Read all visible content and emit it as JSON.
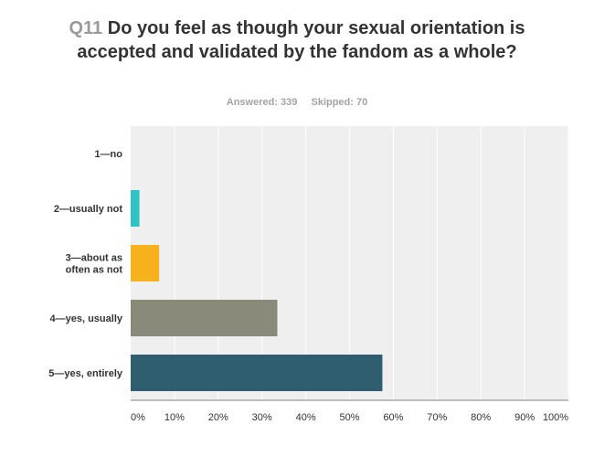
{
  "header": {
    "question_number": "Q11",
    "question_text": "Do you feel as though your sexual orientation is accepted and validated by the fandom as a whole?",
    "answered_label": "Answered: 339",
    "skipped_label": "Skipped: 70"
  },
  "chart_data": {
    "type": "bar",
    "orientation": "horizontal",
    "categories": [
      [
        "1—no"
      ],
      [
        "2—usually not"
      ],
      [
        "3—about as",
        "often as not"
      ],
      [
        "4—yes, usually"
      ],
      [
        "5—yes, entirely"
      ]
    ],
    "values": [
      0,
      2,
      6.5,
      33.5,
      57.5
    ],
    "colors": [
      "#2aa8b8",
      "#2ec4c6",
      "#f7b11c",
      "#8a8a7a",
      "#2f5f6e"
    ],
    "xlim": [
      0,
      100
    ],
    "x_ticks": [
      "0%",
      "10%",
      "20%",
      "30%",
      "40%",
      "50%",
      "60%",
      "70%",
      "80%",
      "90%",
      "100%"
    ],
    "grid": true,
    "plot_background": "#efefef"
  }
}
